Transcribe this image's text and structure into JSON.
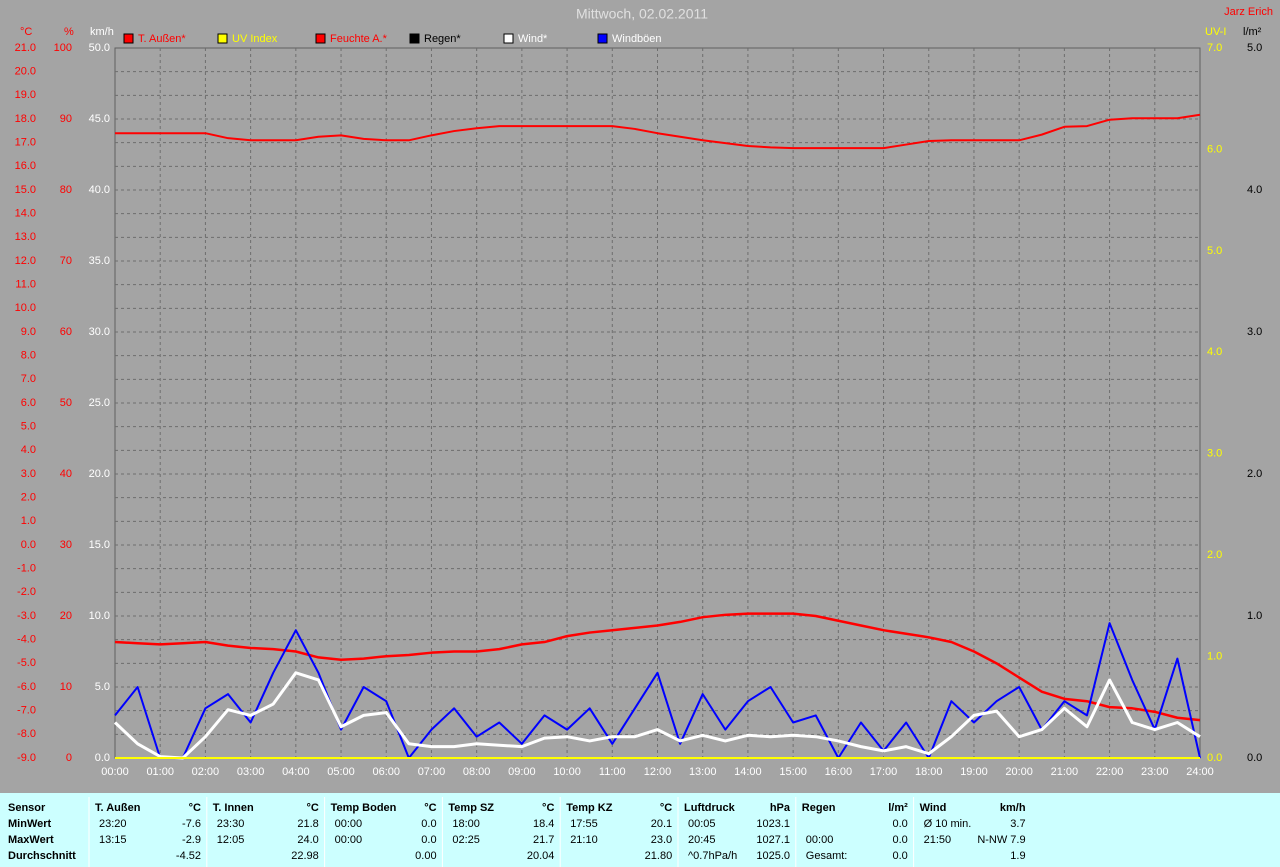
{
  "chart_data": {
    "type": "line",
    "title": "Mittwoch, 02.02.2011",
    "author": "Jarz Erich",
    "grid": true,
    "x": [
      0,
      0.5,
      1,
      1.5,
      2,
      2.5,
      3,
      3.5,
      4,
      4.5,
      5,
      5.5,
      6,
      6.5,
      7,
      7.5,
      8,
      8.5,
      9,
      9.5,
      10,
      10.5,
      11,
      11.5,
      12,
      12.5,
      13,
      13.5,
      14,
      14.5,
      15,
      15.5,
      16,
      16.5,
      17,
      17.5,
      18,
      18.5,
      19,
      19.5,
      20,
      20.5,
      21,
      21.5,
      22,
      22.5,
      23,
      23.5,
      24
    ],
    "xlim": [
      0,
      24
    ],
    "xticks": [
      {
        "value": 0,
        "label": "00:00"
      },
      {
        "value": 1,
        "label": "01:00"
      },
      {
        "value": 2,
        "label": "02:00"
      },
      {
        "value": 3,
        "label": "03:00"
      },
      {
        "value": 4,
        "label": "04:00"
      },
      {
        "value": 5,
        "label": "05:00"
      },
      {
        "value": 6,
        "label": "06:00"
      },
      {
        "value": 7,
        "label": "07:00"
      },
      {
        "value": 8,
        "label": "08:00"
      },
      {
        "value": 9,
        "label": "09:00"
      },
      {
        "value": 10,
        "label": "10:00"
      },
      {
        "value": 11,
        "label": "11:00"
      },
      {
        "value": 12,
        "label": "12:00"
      },
      {
        "value": 13,
        "label": "13:00"
      },
      {
        "value": 14,
        "label": "14:00"
      },
      {
        "value": 15,
        "label": "15:00"
      },
      {
        "value": 16,
        "label": "16:00"
      },
      {
        "value": 17,
        "label": "17:00"
      },
      {
        "value": 18,
        "label": "18:00"
      },
      {
        "value": 19,
        "label": "19:00"
      },
      {
        "value": 20,
        "label": "20:00"
      },
      {
        "value": 21,
        "label": "21:00"
      },
      {
        "value": 22,
        "label": "22:00"
      },
      {
        "value": 23,
        "label": "23:00"
      },
      {
        "value": 24,
        "label": "24:00"
      }
    ],
    "axes": [
      {
        "label": "°C",
        "color": "#ff0000",
        "lim": [
          -9,
          21
        ],
        "ticks": [
          {
            "value": -9,
            "label": "-9.0"
          },
          {
            "value": -8,
            "label": "-8.0"
          },
          {
            "value": -7,
            "label": "-7.0"
          },
          {
            "value": -6,
            "label": "-6.0"
          },
          {
            "value": -5,
            "label": "-5.0"
          },
          {
            "value": -4,
            "label": "-4.0"
          },
          {
            "value": -3,
            "label": "-3.0"
          },
          {
            "value": -2,
            "label": "-2.0"
          },
          {
            "value": -1,
            "label": "-1.0"
          },
          {
            "value": 0,
            "label": "0.0"
          },
          {
            "value": 1,
            "label": "1.0"
          },
          {
            "value": 2,
            "label": "2.0"
          },
          {
            "value": 3,
            "label": "3.0"
          },
          {
            "value": 4,
            "label": "4.0"
          },
          {
            "value": 5,
            "label": "5.0"
          },
          {
            "value": 6,
            "label": "6.0"
          },
          {
            "value": 7,
            "label": "7.0"
          },
          {
            "value": 8,
            "label": "8.0"
          },
          {
            "value": 9,
            "label": "9.0"
          },
          {
            "value": 10,
            "label": "10.0"
          },
          {
            "value": 11,
            "label": "11.0"
          },
          {
            "value": 12,
            "label": "12.0"
          },
          {
            "value": 13,
            "label": "13.0"
          },
          {
            "value": 14,
            "label": "14.0"
          },
          {
            "value": 15,
            "label": "15.0"
          },
          {
            "value": 16,
            "label": "16.0"
          },
          {
            "value": 17,
            "label": "17.0"
          },
          {
            "value": 18,
            "label": "18.0"
          },
          {
            "value": 19,
            "label": "19.0"
          },
          {
            "value": 20,
            "label": "20.0"
          },
          {
            "value": 21,
            "label": "21.0"
          }
        ]
      },
      {
        "label": "%",
        "color": "#ff0000",
        "lim": [
          0,
          100
        ],
        "ticks": [
          0,
          10,
          20,
          30,
          40,
          50,
          60,
          70,
          80,
          90,
          100
        ]
      },
      {
        "label": "km/h",
        "color": "#ffffff",
        "lim": [
          0,
          50
        ],
        "ticks": [
          {
            "value": 0,
            "label": "0.0"
          },
          {
            "value": 5,
            "label": "5.0"
          },
          {
            "value": 10,
            "label": "10.0"
          },
          {
            "value": 15,
            "label": "15.0"
          },
          {
            "value": 20,
            "label": "20.0"
          },
          {
            "value": 25,
            "label": "25.0"
          },
          {
            "value": 30,
            "label": "30.0"
          },
          {
            "value": 35,
            "label": "35.0"
          },
          {
            "value": 40,
            "label": "40.0"
          },
          {
            "value": 45,
            "label": "45.0"
          },
          {
            "value": 50,
            "label": "50.0"
          }
        ]
      },
      {
        "label": "UV-I",
        "color": "#ffff00",
        "lim": [
          0,
          7
        ],
        "ticks": [
          {
            "value": 0,
            "label": "0.0"
          },
          {
            "value": 1,
            "label": "1.0"
          },
          {
            "value": 2,
            "label": "2.0"
          },
          {
            "value": 3,
            "label": "3.0"
          },
          {
            "value": 4,
            "label": "4.0"
          },
          {
            "value": 5,
            "label": "5.0"
          },
          {
            "value": 6,
            "label": "6.0"
          },
          {
            "value": 7,
            "label": "7.0"
          }
        ]
      },
      {
        "label": "l/m²",
        "color": "#000000",
        "lim": [
          0,
          5
        ],
        "ticks": [
          {
            "value": 0,
            "label": "0.0"
          },
          {
            "value": 1,
            "label": "1.0"
          },
          {
            "value": 2,
            "label": "2.0"
          },
          {
            "value": 3,
            "label": "3.0"
          },
          {
            "value": 4,
            "label": "4.0"
          },
          {
            "value": 5,
            "label": "5.0"
          }
        ]
      }
    ],
    "series": [
      {
        "name": "T. Außen*",
        "color": "#ff0000",
        "axis": 0,
        "values": [
          -4.1,
          -4.15,
          -4.2,
          -4.15,
          -4.1,
          -4.25,
          -4.35,
          -4.4,
          -4.5,
          -4.75,
          -4.85,
          -4.8,
          -4.7,
          -4.65,
          -4.55,
          -4.5,
          -4.5,
          -4.4,
          -4.2,
          -4.1,
          -3.85,
          -3.7,
          -3.6,
          -3.5,
          -3.4,
          -3.25,
          -3.05,
          -2.95,
          -2.9,
          -2.9,
          -2.9,
          -3.0,
          -3.2,
          -3.4,
          -3.6,
          -3.75,
          -3.9,
          -4.1,
          -4.5,
          -5.0,
          -5.6,
          -6.2,
          -6.5,
          -6.6,
          -6.85,
          -6.9,
          -7.05,
          -7.3,
          -7.4
        ]
      },
      {
        "name": "UV Index",
        "color": "#ffff00",
        "axis": 3,
        "values": [
          0,
          0,
          0,
          0,
          0,
          0,
          0,
          0,
          0,
          0,
          0,
          0,
          0,
          0,
          0,
          0,
          0,
          0,
          0,
          0,
          0,
          0,
          0,
          0,
          0,
          0,
          0,
          0,
          0,
          0,
          0,
          0,
          0,
          0,
          0,
          0,
          0,
          0,
          0,
          0,
          0,
          0,
          0,
          0,
          0,
          0,
          0,
          0,
          0
        ]
      },
      {
        "name": "Feuchte A.*",
        "color": "#ff0000",
        "axis": 1,
        "values": [
          88,
          88,
          88,
          88,
          88,
          87.3,
          87,
          87,
          87,
          87.5,
          87.7,
          87.2,
          87,
          87,
          87.7,
          88.3,
          88.7,
          89,
          89,
          89,
          89,
          89,
          89,
          88.6,
          88,
          87.5,
          87,
          86.6,
          86.2,
          86,
          85.9,
          85.9,
          85.9,
          85.9,
          85.9,
          86.4,
          86.9,
          87,
          87,
          87,
          87,
          87.8,
          88.9,
          89,
          89.9,
          90.1,
          90.1,
          90.1,
          90.6
        ]
      },
      {
        "name": "Regen*",
        "color": "#000000",
        "axis": 4,
        "values": [
          null,
          null,
          null,
          null,
          null,
          null,
          null,
          null,
          null,
          null,
          null,
          null,
          null,
          null,
          null,
          null,
          null,
          null,
          null,
          null,
          null,
          null,
          null,
          null,
          null,
          null,
          null,
          null,
          null,
          null,
          null,
          null,
          null,
          null,
          null,
          null,
          null,
          null,
          null,
          null,
          null,
          null,
          null,
          null,
          null,
          null,
          null,
          null,
          null
        ]
      },
      {
        "name": "Wind*",
        "color": "#ffffff",
        "axis": 2,
        "values": [
          2.5,
          1.0,
          0.1,
          0.0,
          1.5,
          3.4,
          3.0,
          3.8,
          6.0,
          5.5,
          2.2,
          3.0,
          3.2,
          1.0,
          0.8,
          0.8,
          1.0,
          0.9,
          0.8,
          1.4,
          1.5,
          1.2,
          1.5,
          1.5,
          2.0,
          1.2,
          1.6,
          1.2,
          1.6,
          1.5,
          1.6,
          1.5,
          1.2,
          0.8,
          0.5,
          0.8,
          0.3,
          1.5,
          3.0,
          3.3,
          1.5,
          2.0,
          3.5,
          2.2,
          5.5,
          2.5,
          2.0,
          2.5,
          1.5
        ]
      },
      {
        "name": "Windböen",
        "color": "#0000ff",
        "axis": 2,
        "values": [
          3,
          5,
          0,
          0,
          3.5,
          4.5,
          2.5,
          6,
          9,
          6,
          2,
          5,
          4,
          0,
          2,
          3.5,
          1.5,
          2.5,
          1,
          3,
          2,
          3.5,
          1,
          3.5,
          6,
          1,
          4.5,
          2,
          4,
          5,
          2.5,
          3,
          0,
          2.5,
          0.5,
          2.5,
          0,
          4,
          2.5,
          4,
          5,
          2,
          4,
          3,
          9.5,
          5.5,
          2,
          7,
          0
        ]
      }
    ]
  },
  "table": {
    "sensor_column": {
      "header": "Sensor",
      "rows": [
        "MinWert",
        "MaxWert",
        "Durchschnitt"
      ]
    },
    "columns": [
      {
        "header": "T. Außen",
        "unit": "°C",
        "rows": [
          [
            "23:20",
            "-7.6"
          ],
          [
            "13:15",
            "-2.9"
          ],
          [
            null,
            "-4.52"
          ]
        ]
      },
      {
        "header": "T. Innen",
        "unit": "°C",
        "rows": [
          [
            "23:30",
            "21.8"
          ],
          [
            "12:05",
            "24.0"
          ],
          [
            null,
            "22.98"
          ]
        ]
      },
      {
        "header": "Temp Boden",
        "unit": "°C",
        "rows": [
          [
            "00:00",
            "0.0"
          ],
          [
            "00:00",
            "0.0"
          ],
          [
            null,
            "0.00"
          ]
        ]
      },
      {
        "header": "Temp SZ",
        "unit": "°C",
        "rows": [
          [
            "18:00",
            "18.4"
          ],
          [
            "02:25",
            "21.7"
          ],
          [
            null,
            "20.04"
          ]
        ]
      },
      {
        "header": "Temp KZ",
        "unit": "°C",
        "rows": [
          [
            "17:55",
            "20.1"
          ],
          [
            "21:10",
            "23.0"
          ],
          [
            null,
            "21.80"
          ]
        ]
      },
      {
        "header": "Luftdruck",
        "unit": "hPa",
        "rows": [
          [
            "00:05",
            "1023.1"
          ],
          [
            "20:45",
            "1027.1"
          ],
          [
            "^0.7hPa/h",
            "1025.0"
          ]
        ]
      },
      {
        "header": "Regen",
        "unit": "l/m²",
        "rows": [
          [
            null,
            "0.0"
          ],
          [
            "00:00",
            "0.0"
          ],
          [
            "Gesamt:",
            "0.0"
          ]
        ]
      },
      {
        "header": "Wind",
        "unit": "km/h",
        "rows": [
          [
            "Ø 10 min.",
            "3.7"
          ],
          [
            "21:50",
            "N-NW 7.9"
          ],
          [
            null,
            "1.9"
          ]
        ]
      }
    ]
  }
}
